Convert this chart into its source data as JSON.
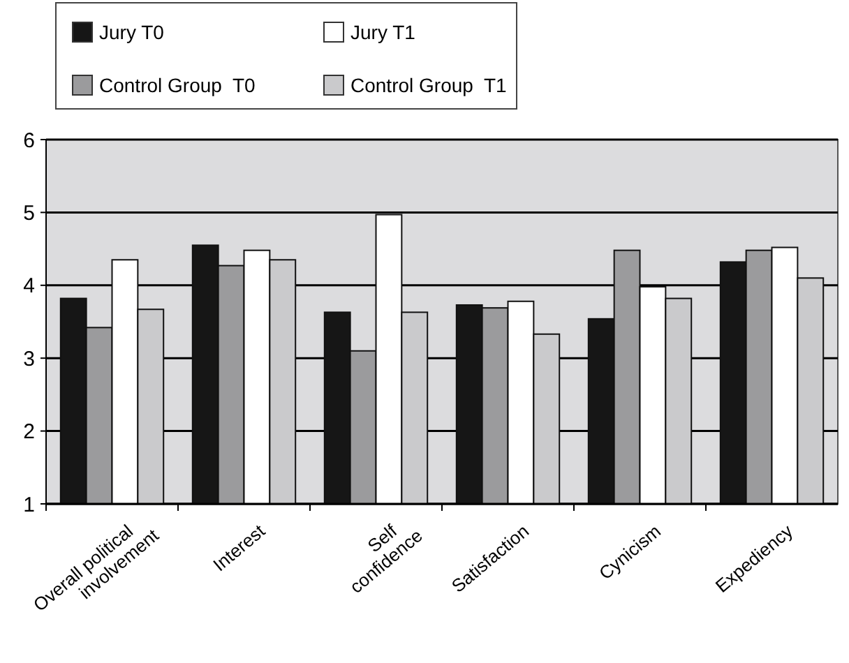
{
  "chart_data": {
    "type": "bar",
    "categories": [
      "Overall political involvement",
      "Interest",
      "Self confidence",
      "Satisfaction",
      "Cynicism",
      "Expediency"
    ],
    "series": [
      {
        "name": "Jury T0",
        "color": "#161616",
        "values": [
          3.82,
          4.55,
          3.63,
          3.73,
          3.54,
          4.32
        ]
      },
      {
        "name": "Control Group  T0",
        "color": "#9b9b9d",
        "values": [
          3.42,
          4.27,
          3.1,
          3.69,
          4.48,
          4.48
        ]
      },
      {
        "name": "Jury T1",
        "color": "#ffffff",
        "values": [
          4.35,
          4.48,
          4.97,
          3.78,
          3.98,
          4.52
        ]
      },
      {
        "name": "Control Group  T1",
        "color": "#cacacc",
        "values": [
          3.67,
          4.35,
          3.63,
          3.33,
          3.82,
          4.1
        ]
      }
    ],
    "ylim": [
      1,
      6
    ],
    "yticks": [
      1,
      2,
      3,
      4,
      5,
      6
    ],
    "grid": "y",
    "legend": "top left"
  }
}
